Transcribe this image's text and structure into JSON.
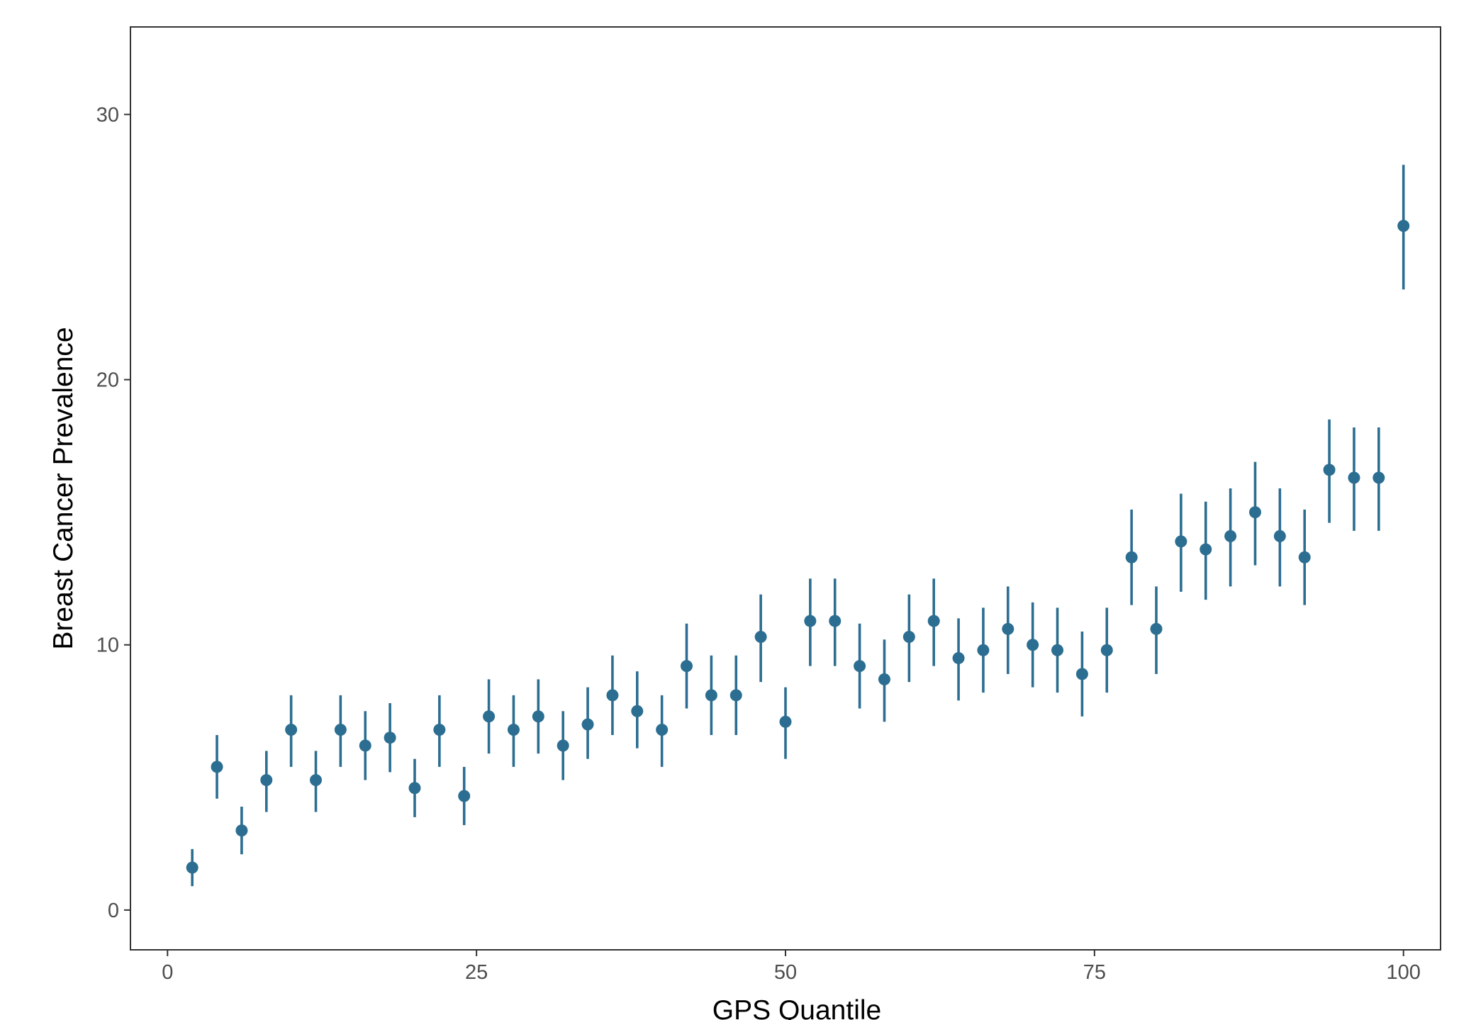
{
  "chart_data": {
    "type": "scatter",
    "title": "",
    "xlabel": "GPS Quantile",
    "ylabel": "Breast Cancer Prevalence",
    "xlim": [
      -3,
      103
    ],
    "ylim": [
      -1.5,
      33.3
    ],
    "x_ticks": [
      0,
      25,
      50,
      75,
      100
    ],
    "x_tick_labels": [
      "0",
      "25",
      "50",
      "75",
      "100"
    ],
    "y_ticks": [
      0,
      10,
      20,
      30
    ],
    "y_tick_labels": [
      "0",
      "10",
      "20",
      "30"
    ],
    "grid": false,
    "legend": "none",
    "point_color": "#2C6E91",
    "series": [
      {
        "x": [
          2,
          4,
          6,
          8,
          10,
          12,
          14,
          16,
          18,
          20,
          22,
          24,
          26,
          28,
          30,
          32,
          34,
          36,
          38,
          40,
          42,
          44,
          46,
          48,
          50,
          52,
          54,
          56,
          58,
          60,
          62,
          64,
          66,
          68,
          70,
          72,
          74,
          76,
          78,
          80,
          82,
          84,
          86,
          88,
          90,
          92,
          94,
          96,
          98,
          100
        ],
        "y": [
          1.6,
          5.4,
          3.0,
          4.9,
          6.8,
          4.9,
          6.8,
          6.2,
          6.5,
          4.6,
          6.8,
          4.3,
          7.3,
          6.8,
          7.3,
          6.2,
          7.0,
          8.1,
          7.5,
          6.8,
          9.2,
          8.1,
          8.1,
          10.3,
          7.1,
          10.9,
          10.9,
          9.2,
          8.7,
          10.3,
          10.9,
          9.5,
          9.8,
          10.6,
          10.0,
          9.8,
          8.9,
          9.8,
          13.3,
          10.6,
          13.9,
          13.6,
          14.1,
          15.0,
          14.1,
          13.3,
          16.6,
          16.3,
          16.3,
          25.8
        ],
        "lower": [
          0.9,
          4.2,
          2.1,
          3.7,
          5.4,
          3.7,
          5.4,
          4.9,
          5.2,
          3.5,
          5.4,
          3.2,
          5.9,
          5.4,
          5.9,
          4.9,
          5.7,
          6.6,
          6.1,
          5.4,
          7.6,
          6.6,
          6.6,
          8.6,
          5.7,
          9.2,
          9.2,
          7.6,
          7.1,
          8.6,
          9.2,
          7.9,
          8.2,
          8.9,
          8.4,
          8.2,
          7.3,
          8.2,
          11.5,
          8.9,
          12.0,
          11.7,
          12.2,
          13.0,
          12.2,
          11.5,
          14.6,
          14.3,
          14.3,
          23.4
        ],
        "upper": [
          2.3,
          6.6,
          3.9,
          6.0,
          8.1,
          6.0,
          8.1,
          7.5,
          7.8,
          5.7,
          8.1,
          5.4,
          8.7,
          8.1,
          8.7,
          7.5,
          8.4,
          9.6,
          9.0,
          8.1,
          10.8,
          9.6,
          9.6,
          11.9,
          8.4,
          12.5,
          12.5,
          10.8,
          10.2,
          11.9,
          12.5,
          11.0,
          11.4,
          12.2,
          11.6,
          11.4,
          10.5,
          11.4,
          15.1,
          12.2,
          15.7,
          15.4,
          15.9,
          16.9,
          15.9,
          15.1,
          18.5,
          18.2,
          18.2,
          28.1
        ]
      }
    ]
  }
}
